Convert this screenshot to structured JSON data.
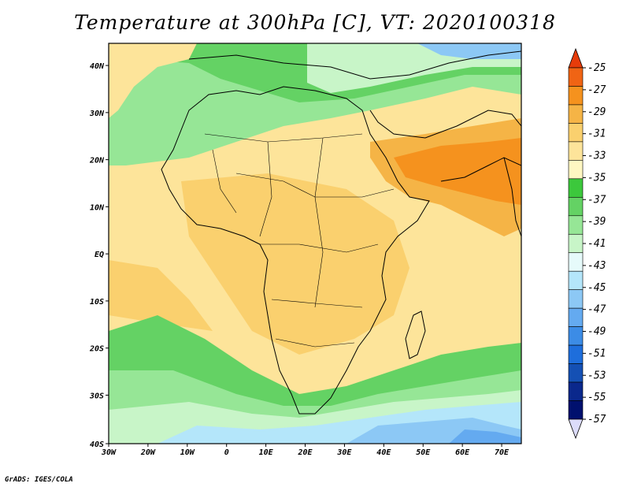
{
  "title": "Temperature at 300hPa [C], VT: 2020100318",
  "credit": "GrADS: IGES/COLA",
  "map": {
    "lat_ticks": [
      "40N",
      "30N",
      "20N",
      "10N",
      "EQ",
      "10S",
      "20S",
      "30S",
      "40S"
    ],
    "lon_ticks": [
      "30W",
      "20W",
      "10W",
      "0",
      "10E",
      "20E",
      "30E",
      "40E",
      "50E",
      "60E",
      "70E"
    ]
  },
  "colorbar": {
    "levels": [
      "-25",
      "-27",
      "-29",
      "-31",
      "-33",
      "-35",
      "-37",
      "-39",
      "-41",
      "-43",
      "-45",
      "-47",
      "-49",
      "-51",
      "-53",
      "-55",
      "-57"
    ],
    "colors": [
      "#e63c0a",
      "#f06414",
      "#f5921e",
      "#f5b446",
      "#fad06e",
      "#fde49a",
      "#fff7c2",
      "#3cc83c",
      "#64d264",
      "#96e696",
      "#c8f5c8",
      "#e6fafa",
      "#b4e6fa",
      "#8cc8f5",
      "#64aaf0",
      "#3c8ce6",
      "#1e6edc",
      "#1450b4",
      "#0a288c",
      "#00106e",
      "#dcdcfa"
    ]
  }
}
